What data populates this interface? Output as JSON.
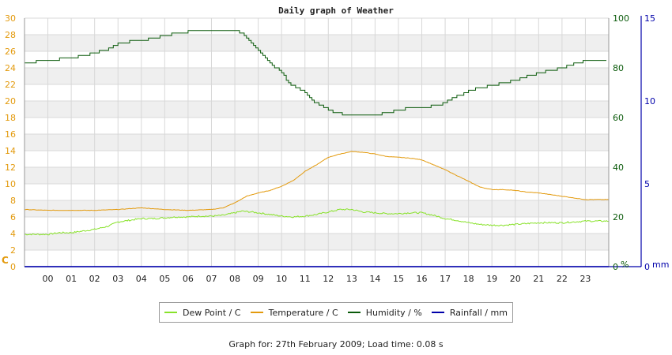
{
  "footer": {
    "text": "Graph for: 27th February 2009; Load time: 0.08 s"
  },
  "chart_data": {
    "type": "line",
    "title": "Daily graph of Weather",
    "x_tick_labels": [
      "00",
      "01",
      "02",
      "03",
      "04",
      "05",
      "06",
      "07",
      "08",
      "09",
      "10",
      "11",
      "12",
      "13",
      "14",
      "15",
      "16",
      "17",
      "18",
      "19",
      "20",
      "21",
      "22",
      "23"
    ],
    "axes": {
      "temperature": {
        "unit_label": "C",
        "range": [
          0,
          30
        ],
        "ticks": [
          0,
          2,
          4,
          6,
          8,
          10,
          12,
          14,
          16,
          18,
          20,
          22,
          24,
          26,
          28,
          30
        ],
        "color": "#e39a0d",
        "side": "left"
      },
      "humidity": {
        "unit_label": "%",
        "range": [
          0,
          100
        ],
        "ticks": [
          0,
          20,
          40,
          60,
          80,
          100
        ],
        "color": "#0a5a0a",
        "side": "right"
      },
      "rainfall": {
        "unit_label": "mm",
        "range": [
          0,
          15
        ],
        "ticks": [
          0,
          5,
          10,
          15
        ],
        "color": "#0000aa",
        "side": "right-outer"
      }
    },
    "x_range_hours": [
      -1,
      24
    ],
    "grid": true,
    "legend_position": "bottom",
    "series": [
      {
        "name": "Dew Point / C",
        "axis": "temperature",
        "color": "#88e22a",
        "style": "noisy",
        "x": [
          -1,
          0,
          0.5,
          1,
          1.5,
          2,
          2.3,
          2.6,
          3,
          3.5,
          4,
          4.5,
          5,
          5.5,
          6,
          6.5,
          7,
          7.5,
          8,
          8.3,
          8.7,
          9,
          9.5,
          10,
          10.5,
          11,
          11.5,
          12,
          12.5,
          13,
          13.5,
          14,
          14.5,
          15,
          15.5,
          16,
          16.5,
          17,
          17.5,
          18,
          18.5,
          19,
          19.5,
          20,
          20.5,
          21,
          21.5,
          22,
          22.5,
          23,
          24
        ],
        "values": [
          3.9,
          3.9,
          4.1,
          4.1,
          4.3,
          4.5,
          4.7,
          4.9,
          5.4,
          5.6,
          5.8,
          5.8,
          5.9,
          6.0,
          6.0,
          6.1,
          6.1,
          6.2,
          6.5,
          6.7,
          6.6,
          6.5,
          6.3,
          6.1,
          6.0,
          6.1,
          6.3,
          6.6,
          6.9,
          6.9,
          6.6,
          6.5,
          6.4,
          6.4,
          6.5,
          6.5,
          6.2,
          5.8,
          5.6,
          5.3,
          5.1,
          5.0,
          5.0,
          5.1,
          5.2,
          5.3,
          5.3,
          5.3,
          5.4,
          5.5,
          5.5
        ]
      },
      {
        "name": "Temperature / C",
        "axis": "temperature",
        "color": "#e39a0d",
        "style": "smooth",
        "x": [
          -1,
          0,
          1,
          2,
          3,
          4,
          5,
          6,
          7,
          7.5,
          8,
          8.5,
          9,
          9.5,
          10,
          10.5,
          11,
          11.5,
          12,
          12.5,
          13,
          13.5,
          14,
          14.5,
          15,
          15.5,
          16,
          16.5,
          17,
          17.5,
          18,
          18.5,
          19,
          19.5,
          20,
          20.5,
          21,
          21.5,
          22,
          22.5,
          23,
          23.5,
          24
        ],
        "values": [
          6.9,
          6.8,
          6.8,
          6.8,
          6.9,
          7.1,
          6.9,
          6.8,
          6.9,
          7.1,
          7.7,
          8.5,
          8.9,
          9.2,
          9.7,
          10.4,
          11.5,
          12.3,
          13.2,
          13.6,
          13.9,
          13.8,
          13.6,
          13.3,
          13.2,
          13.1,
          12.9,
          12.3,
          11.7,
          11.0,
          10.3,
          9.6,
          9.3,
          9.3,
          9.2,
          9.0,
          8.9,
          8.7,
          8.5,
          8.3,
          8.1,
          8.1,
          8.1
        ]
      },
      {
        "name": "Humidity / %",
        "axis": "humidity",
        "color": "#0a5a0a",
        "style": "step",
        "x": [
          -1,
          0,
          1,
          2,
          2.7,
          3,
          3.5,
          4,
          4.5,
          5,
          5.5,
          6,
          6.5,
          7,
          7.5,
          8,
          8.3,
          8.6,
          9,
          9.3,
          9.6,
          10,
          10.3,
          10.6,
          11,
          11.3,
          11.6,
          12,
          12.3,
          12.7,
          13,
          13.5,
          14,
          14.5,
          15,
          15.5,
          16,
          16.3,
          16.6,
          17,
          17.3,
          17.6,
          18,
          18.5,
          19,
          19.5,
          20,
          20.5,
          21,
          21.5,
          22,
          22.5,
          23,
          24
        ],
        "values": [
          82,
          83,
          84,
          86,
          88,
          90,
          90.5,
          91,
          92,
          93,
          94,
          94.5,
          95,
          95,
          95,
          95,
          94,
          91,
          87,
          84,
          81,
          78,
          74,
          72,
          70,
          67,
          65,
          63,
          62,
          61,
          61,
          60.5,
          61,
          62,
          63,
          64,
          64,
          64.5,
          65,
          66,
          68,
          69,
          71,
          72,
          73,
          74,
          75,
          76.5,
          78,
          79,
          80,
          81.5,
          83,
          83.5
        ]
      },
      {
        "name": "Rainfall / mm",
        "axis": "rainfall",
        "color": "#0000aa",
        "style": "flat",
        "x": [
          -1,
          24
        ],
        "values": [
          0,
          0
        ]
      }
    ]
  }
}
